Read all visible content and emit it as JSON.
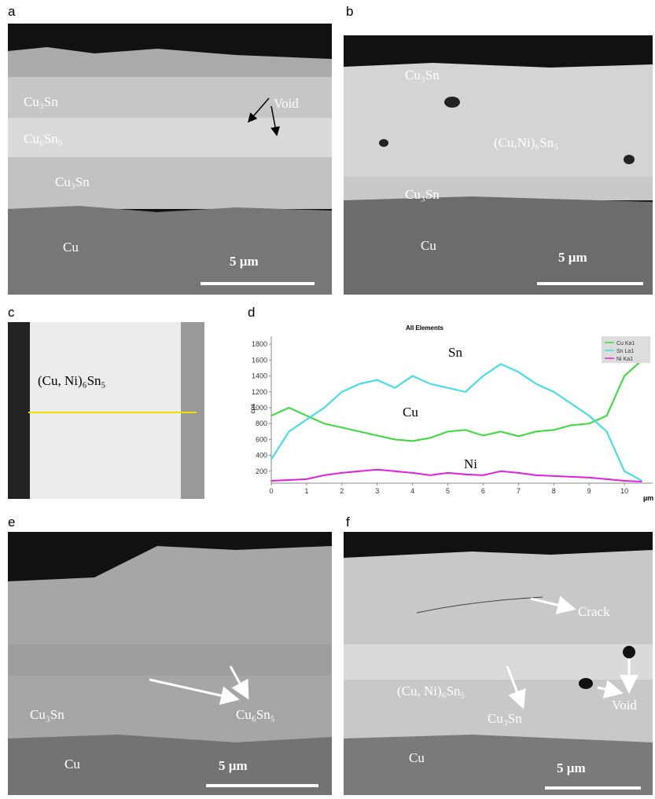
{
  "panels": [
    {
      "label": "a",
      "annotations": [
        "Cu₃Sn",
        "Cu₆Sn₅",
        "Cu₃Sn",
        "Void",
        "Cu"
      ],
      "scale_bar": "5 µm"
    },
    {
      "label": "b",
      "annotations": [
        "Cu₃Sn",
        "(Cu,Ni)₆Sn₅",
        "Cu₃Sn",
        "Cu"
      ],
      "scale_bar": "5 µm"
    },
    {
      "label": "c",
      "annotations": [
        "(Cu, Ni)₆Sn₅"
      ]
    },
    {
      "label": "e",
      "annotations": [
        "Cu₃Sn",
        "Cu₆Sn₅",
        "Cu"
      ],
      "scale_bar": "5 µm"
    },
    {
      "label": "f",
      "annotations": [
        "Crack",
        "(Cu, Ni)₆Sn₅",
        "Cu₃Sn",
        "Void",
        "Cu"
      ],
      "scale_bar": "5 µm"
    }
  ],
  "chart_data": {
    "type": "line",
    "panel_label": "d",
    "title": "All Elements",
    "y_label": "cps",
    "x_label": "µm",
    "x": [
      0,
      0.5,
      1,
      1.5,
      2,
      2.5,
      3,
      3.5,
      4,
      4.5,
      5,
      5.5,
      6,
      6.5,
      7,
      7.5,
      8,
      8.5,
      9,
      9.5,
      10,
      10.5
    ],
    "series": [
      {
        "name": "Cu Ka1",
        "color": "#33dd33",
        "values": [
          900,
          1000,
          900,
          800,
          750,
          700,
          650,
          600,
          580,
          620,
          700,
          720,
          650,
          700,
          640,
          700,
          720,
          780,
          800,
          900,
          1400,
          1600
        ]
      },
      {
        "name": "Sn La1",
        "color": "#33e0e8",
        "values": [
          350,
          700,
          850,
          1000,
          1200,
          1300,
          1350,
          1250,
          1400,
          1300,
          1250,
          1200,
          1400,
          1550,
          1450,
          1300,
          1200,
          1050,
          900,
          700,
          200,
          80
        ]
      },
      {
        "name": "Ni Ka1",
        "color": "#e020e0",
        "values": [
          80,
          90,
          100,
          150,
          180,
          200,
          220,
          200,
          180,
          150,
          180,
          160,
          150,
          200,
          180,
          150,
          140,
          130,
          120,
          100,
          80,
          70
        ]
      }
    ],
    "annotations": [
      "Sn",
      "Cu",
      "Ni"
    ],
    "xlim": [
      0,
      10.8
    ],
    "ylim": [
      50,
      1900
    ],
    "xticks": [
      0,
      1,
      2,
      3,
      4,
      5,
      6,
      7,
      8,
      9,
      10
    ],
    "yticks": [
      200,
      400,
      600,
      800,
      1000,
      1200,
      1400,
      1600,
      1800
    ]
  }
}
